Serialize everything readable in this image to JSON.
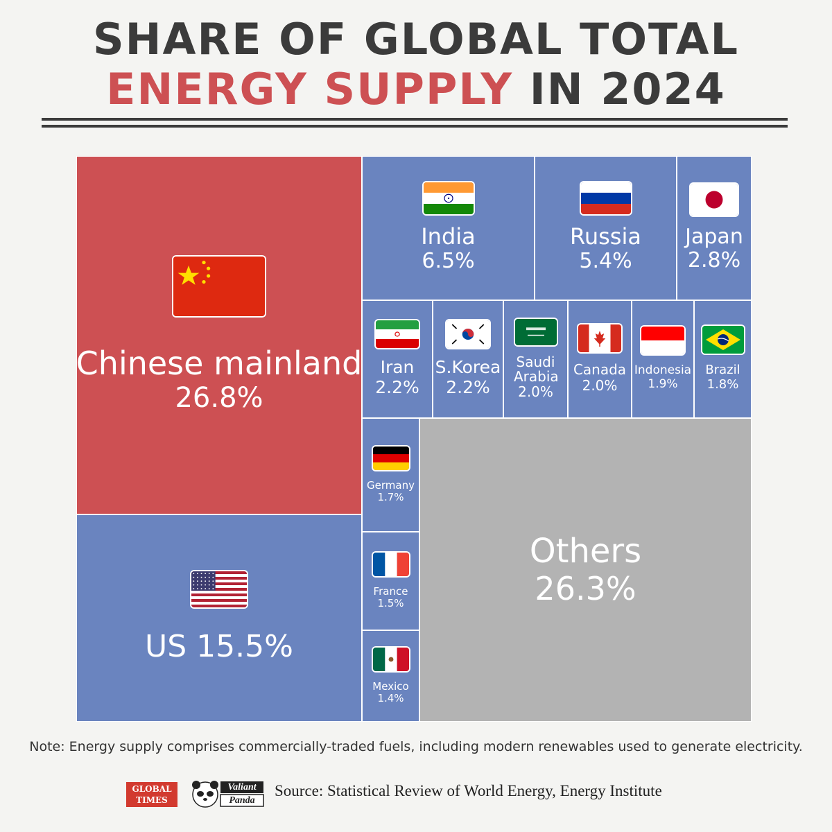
{
  "title": {
    "line1": "SHARE OF GLOBAL TOTAL",
    "line2_accent": "ENERGY SUPPLY",
    "line2_rest": " IN 2024"
  },
  "colors": {
    "accent": "#cd5053",
    "tile_blue": "#6a84bf",
    "tile_gray": "#b3b3b3",
    "text_dark": "#3b3b3b"
  },
  "chart_data": {
    "type": "treemap",
    "unit": "%",
    "items": [
      {
        "name": "Chinese mainland",
        "value": 26.8,
        "label": "26.8%",
        "flag": "china-flag-icon",
        "color": "#cd5053"
      },
      {
        "name": "US",
        "value": 15.5,
        "label": "US 15.5%",
        "flag": "us-flag-icon",
        "color": "#6a84bf"
      },
      {
        "name": "India",
        "value": 6.5,
        "label": "6.5%",
        "flag": "india-flag-icon",
        "color": "#6a84bf"
      },
      {
        "name": "Russia",
        "value": 5.4,
        "label": "5.4%",
        "flag": "russia-flag-icon",
        "color": "#6a84bf"
      },
      {
        "name": "Japan",
        "value": 2.8,
        "label": "2.8%",
        "flag": "japan-flag-icon",
        "color": "#6a84bf"
      },
      {
        "name": "Iran",
        "value": 2.2,
        "label": "2.2%",
        "flag": "iran-flag-icon",
        "color": "#6a84bf"
      },
      {
        "name": "S.Korea",
        "value": 2.2,
        "label": "2.2%",
        "flag": "south-korea-flag-icon",
        "color": "#6a84bf"
      },
      {
        "name": "Saudi Arabia",
        "value": 2.0,
        "label": "2.0%",
        "flag": "saudi-arabia-flag-icon",
        "color": "#6a84bf"
      },
      {
        "name": "Canada",
        "value": 2.0,
        "label": "2.0%",
        "flag": "canada-flag-icon",
        "color": "#6a84bf"
      },
      {
        "name": "Indonesia",
        "value": 1.9,
        "label": "1.9%",
        "flag": "indonesia-flag-icon",
        "color": "#6a84bf"
      },
      {
        "name": "Brazil",
        "value": 1.8,
        "label": "1.8%",
        "flag": "brazil-flag-icon",
        "color": "#6a84bf"
      },
      {
        "name": "Germany",
        "value": 1.7,
        "label": "1.7%",
        "flag": "germany-flag-icon",
        "color": "#6a84bf"
      },
      {
        "name": "France",
        "value": 1.5,
        "label": "1.5%",
        "flag": "france-flag-icon",
        "color": "#6a84bf"
      },
      {
        "name": "Mexico",
        "value": 1.4,
        "label": "1.4%",
        "flag": "mexico-flag-icon",
        "color": "#6a84bf"
      },
      {
        "name": "Others",
        "value": 26.3,
        "label": "26.3%",
        "flag": "",
        "color": "#b3b3b3"
      }
    ]
  },
  "note": "Note: Energy supply comprises commercially-traded fuels, including modern renewables used to generate electricity.",
  "logos": {
    "global_times": [
      "GLOBAL",
      "TIMES"
    ],
    "valiant_panda": [
      "Valiant",
      "Panda"
    ]
  },
  "source": "Source: Statistical Review of World Energy, Energy Institute"
}
